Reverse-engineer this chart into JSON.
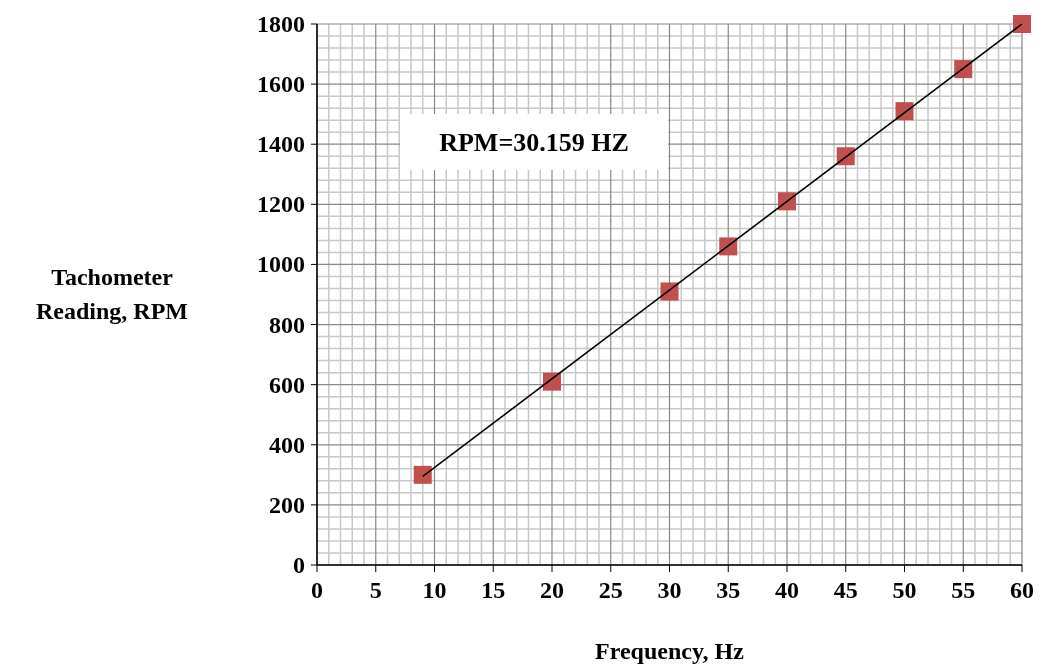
{
  "chart_data": {
    "type": "scatter",
    "xlabel": "Frequency, Hz",
    "ylabel": "Tachometer Reading, RPM",
    "annotations": [
      "RPM=30.159 HZ"
    ],
    "x": [
      9,
      20,
      30,
      35,
      40,
      45,
      50,
      55,
      60
    ],
    "series": [
      {
        "color": "#c0504d",
        "marker": "square",
        "values": [
          300,
          610,
          910,
          1060,
          1210,
          1360,
          1510,
          1650,
          1800
        ]
      },
      {
        "type": "line",
        "color": "#000000",
        "marker": "none",
        "line_style": "solid",
        "x": [
          9,
          60
        ],
        "values": [
          295,
          1800
        ]
      }
    ],
    "xlim": [
      0,
      60
    ],
    "xticks": [
      0,
      5,
      10,
      15,
      20,
      25,
      30,
      35,
      40,
      45,
      50,
      55,
      60
    ],
    "ylim": [
      0,
      1800
    ],
    "yticks": [
      0,
      200,
      400,
      600,
      800,
      1000,
      1200,
      1400,
      1600,
      1800
    ],
    "grid": true
  }
}
